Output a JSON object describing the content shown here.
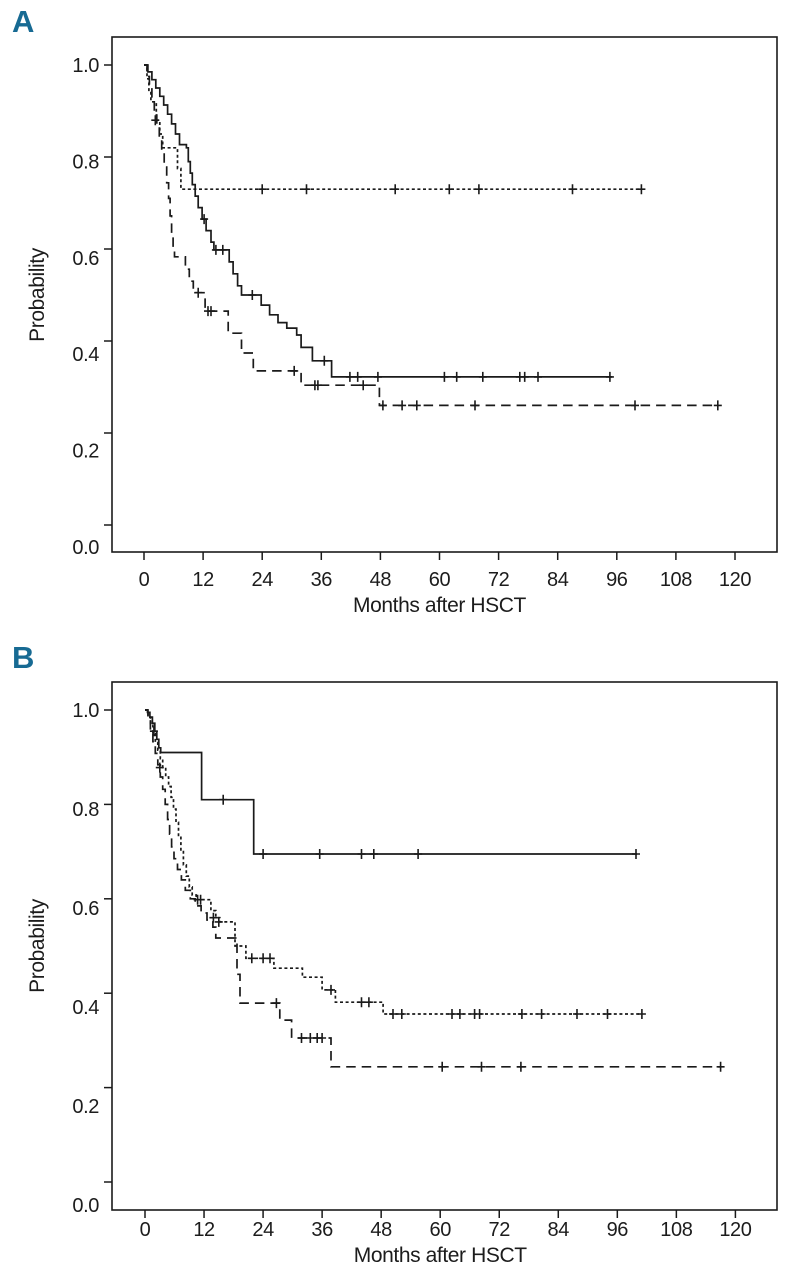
{
  "figure": {
    "accent_color": "#176a93",
    "axis_color": "#1a1a1a",
    "background": "#ffffff",
    "legend": "none (series distinguished by line style only)"
  },
  "chart_data": [
    {
      "type": "line",
      "subtype": "kaplan-meier-step",
      "title": "A",
      "xlabel": "Months after HSCT",
      "ylabel": "Probability",
      "xlim": [
        0,
        120
      ],
      "ylim": [
        0.0,
        1.0
      ],
      "x_ticks": [
        0,
        12,
        24,
        36,
        48,
        60,
        72,
        84,
        96,
        108,
        120
      ],
      "y_ticks": [
        0.0,
        0.2,
        0.4,
        0.6,
        0.8,
        1.0
      ],
      "y_tick_labels": [
        "0.0",
        "0.2",
        "0.4",
        "0.6",
        "0.8",
        "1.0"
      ],
      "grid": false,
      "series": [
        {
          "name": "short-dash-curve",
          "line_style": "short-dash",
          "color": "#1a1a1a",
          "steps": [
            [
              0,
              1.0
            ],
            [
              0.6,
              0.97
            ],
            [
              1.0,
              0.945
            ],
            [
              1.4,
              0.92
            ],
            [
              2.2,
              0.92
            ],
            [
              2.5,
              0.88
            ],
            [
              3.2,
              0.85
            ],
            [
              3.8,
              0.82
            ],
            [
              6.3,
              0.82
            ],
            [
              6.8,
              0.775
            ],
            [
              7.5,
              0.73
            ],
            [
              101,
              0.73
            ]
          ],
          "censor_marks": [
            [
              2.3,
              0.88
            ],
            [
              24,
              0.73
            ],
            [
              33,
              0.73
            ],
            [
              51,
              0.73
            ],
            [
              62,
              0.73
            ],
            [
              68,
              0.73
            ],
            [
              87,
              0.73
            ],
            [
              101,
              0.73
            ]
          ]
        },
        {
          "name": "solid-curve",
          "line_style": "solid",
          "color": "#1a1a1a",
          "steps": [
            [
              0,
              1.0
            ],
            [
              0.8,
              0.985
            ],
            [
              1.6,
              0.968
            ],
            [
              2.4,
              0.95
            ],
            [
              3.2,
              0.932
            ],
            [
              4.0,
              0.913
            ],
            [
              4.8,
              0.893
            ],
            [
              5.6,
              0.872
            ],
            [
              6.4,
              0.85
            ],
            [
              7.2,
              0.827
            ],
            [
              8.6,
              0.82
            ],
            [
              9.0,
              0.79
            ],
            [
              9.4,
              0.765
            ],
            [
              9.8,
              0.74
            ],
            [
              10.4,
              0.715
            ],
            [
              11.0,
              0.69
            ],
            [
              11.8,
              0.665
            ],
            [
              12.6,
              0.64
            ],
            [
              13.6,
              0.615
            ],
            [
              14.2,
              0.598
            ],
            [
              16.6,
              0.598
            ],
            [
              17.3,
              0.572
            ],
            [
              18.1,
              0.546
            ],
            [
              19.0,
              0.52
            ],
            [
              19.8,
              0.5
            ],
            [
              23.0,
              0.5
            ],
            [
              23.8,
              0.478
            ],
            [
              25.5,
              0.457
            ],
            [
              27.2,
              0.44
            ],
            [
              29.0,
              0.428
            ],
            [
              31.0,
              0.413
            ],
            [
              31.9,
              0.386
            ],
            [
              34.2,
              0.357
            ],
            [
              37.8,
              0.357
            ],
            [
              38.1,
              0.322
            ],
            [
              95,
              0.322
            ]
          ],
          "censor_marks": [
            [
              12.2,
              0.665
            ],
            [
              14.6,
              0.598
            ],
            [
              16.0,
              0.598
            ],
            [
              22.0,
              0.5
            ],
            [
              36.6,
              0.357
            ],
            [
              41.8,
              0.322
            ],
            [
              43.4,
              0.322
            ],
            [
              47.5,
              0.322
            ],
            [
              61.0,
              0.322
            ],
            [
              63.5,
              0.322
            ],
            [
              68.8,
              0.322
            ],
            [
              76.3,
              0.322
            ],
            [
              77.3,
              0.322
            ],
            [
              80.0,
              0.322
            ],
            [
              94.6,
              0.322
            ]
          ]
        },
        {
          "name": "long-dash-curve",
          "line_style": "long-dash",
          "color": "#1a1a1a",
          "steps": [
            [
              0,
              1.0
            ],
            [
              0.6,
              0.975
            ],
            [
              1.1,
              0.95
            ],
            [
              1.6,
              0.923
            ],
            [
              2.1,
              0.896
            ],
            [
              2.6,
              0.868
            ],
            [
              3.1,
              0.84
            ],
            [
              3.6,
              0.81
            ],
            [
              4.1,
              0.778
            ],
            [
              4.6,
              0.744
            ],
            [
              5.0,
              0.71
            ],
            [
              5.3,
              0.672
            ],
            [
              5.6,
              0.634
            ],
            [
              5.9,
              0.6
            ],
            [
              6.2,
              0.583
            ],
            [
              7.7,
              0.583
            ],
            [
              8.4,
              0.556
            ],
            [
              9.2,
              0.53
            ],
            [
              10.0,
              0.505
            ],
            [
              12.1,
              0.505
            ],
            [
              12.4,
              0.465
            ],
            [
              16.8,
              0.465
            ],
            [
              17.1,
              0.417
            ],
            [
              19.5,
              0.417
            ],
            [
              19.8,
              0.374
            ],
            [
              21.9,
              0.374
            ],
            [
              22.2,
              0.335
            ],
            [
              31.6,
              0.335
            ],
            [
              31.9,
              0.304
            ],
            [
              47.4,
              0.304
            ],
            [
              47.8,
              0.26
            ],
            [
              116.5,
              0.26
            ]
          ],
          "censor_marks": [
            [
              11.0,
              0.505
            ],
            [
              13.0,
              0.465
            ],
            [
              13.6,
              0.465
            ],
            [
              30.5,
              0.335
            ],
            [
              34.7,
              0.304
            ],
            [
              35.3,
              0.304
            ],
            [
              44.5,
              0.304
            ],
            [
              48.5,
              0.26
            ],
            [
              52.4,
              0.26
            ],
            [
              55.4,
              0.26
            ],
            [
              67.2,
              0.26
            ],
            [
              99.7,
              0.26
            ],
            [
              116.5,
              0.26
            ]
          ]
        }
      ]
    },
    {
      "type": "line",
      "subtype": "kaplan-meier-step",
      "title": "B",
      "xlabel": "Months after HSCT",
      "ylabel": "Probability",
      "xlim": [
        0,
        120
      ],
      "ylim": [
        0.0,
        1.0
      ],
      "x_ticks": [
        0,
        12,
        24,
        36,
        48,
        60,
        72,
        84,
        96,
        108,
        120
      ],
      "y_ticks": [
        0.0,
        0.2,
        0.4,
        0.6,
        0.8,
        1.0
      ],
      "y_tick_labels": [
        "0.0",
        "0.2",
        "0.4",
        "0.6",
        "0.8",
        "1.0"
      ],
      "grid": false,
      "series": [
        {
          "name": "solid-curve",
          "line_style": "solid",
          "color": "#1a1a1a",
          "steps": [
            [
              0,
              1.0
            ],
            [
              0.5,
              0.995
            ],
            [
              1.0,
              0.985
            ],
            [
              1.5,
              0.972
            ],
            [
              2.0,
              0.955
            ],
            [
              2.4,
              0.938
            ],
            [
              2.8,
              0.92
            ],
            [
              3.2,
              0.91
            ],
            [
              11.2,
              0.91
            ],
            [
              11.5,
              0.81
            ],
            [
              21.8,
              0.81
            ],
            [
              22.1,
              0.695
            ],
            [
              100,
              0.695
            ]
          ],
          "censor_marks": [
            [
              1.8,
              0.955
            ],
            [
              15.9,
              0.81
            ],
            [
              24.0,
              0.695
            ],
            [
              35.5,
              0.695
            ],
            [
              44.0,
              0.695
            ],
            [
              46.5,
              0.695
            ],
            [
              55.5,
              0.695
            ],
            [
              99.8,
              0.695
            ]
          ]
        },
        {
          "name": "short-dash-curve",
          "line_style": "short-dash",
          "color": "#1a1a1a",
          "steps": [
            [
              0,
              1.0
            ],
            [
              0.6,
              0.985
            ],
            [
              1.1,
              0.968
            ],
            [
              1.6,
              0.95
            ],
            [
              2.1,
              0.932
            ],
            [
              2.6,
              0.915
            ],
            [
              3.1,
              0.897
            ],
            [
              3.6,
              0.878
            ],
            [
              4.2,
              0.858
            ],
            [
              4.8,
              0.838
            ],
            [
              5.3,
              0.815
            ],
            [
              5.8,
              0.79
            ],
            [
              6.3,
              0.762
            ],
            [
              6.8,
              0.732
            ],
            [
              7.3,
              0.7
            ],
            [
              7.8,
              0.672
            ],
            [
              8.4,
              0.648
            ],
            [
              9.0,
              0.625
            ],
            [
              9.6,
              0.608
            ],
            [
              10.4,
              0.598
            ],
            [
              13.0,
              0.598
            ],
            [
              13.4,
              0.575
            ],
            [
              14.4,
              0.56
            ],
            [
              15.2,
              0.551
            ],
            [
              17.3,
              0.551
            ],
            [
              18.3,
              0.5
            ],
            [
              20.5,
              0.474
            ],
            [
              25.8,
              0.474
            ],
            [
              26.2,
              0.453
            ],
            [
              31.6,
              0.453
            ],
            [
              32.0,
              0.434
            ],
            [
              35.6,
              0.434
            ],
            [
              36.0,
              0.407
            ],
            [
              38.3,
              0.407
            ],
            [
              38.7,
              0.381
            ],
            [
              48.0,
              0.381
            ],
            [
              48.4,
              0.356
            ],
            [
              101,
              0.356
            ]
          ],
          "censor_marks": [
            [
              3.0,
              0.878
            ],
            [
              10.7,
              0.598
            ],
            [
              11.3,
              0.598
            ],
            [
              13.9,
              0.56
            ],
            [
              15.0,
              0.551
            ],
            [
              21.7,
              0.474
            ],
            [
              24.0,
              0.474
            ],
            [
              25.4,
              0.474
            ],
            [
              37.8,
              0.407
            ],
            [
              44.0,
              0.381
            ],
            [
              45.5,
              0.381
            ],
            [
              50.4,
              0.356
            ],
            [
              52.2,
              0.356
            ],
            [
              62.4,
              0.356
            ],
            [
              64.0,
              0.356
            ],
            [
              67.0,
              0.356
            ],
            [
              68.0,
              0.356
            ],
            [
              76.6,
              0.356
            ],
            [
              80.6,
              0.356
            ],
            [
              87.8,
              0.356
            ],
            [
              94.0,
              0.356
            ],
            [
              101,
              0.356
            ]
          ]
        },
        {
          "name": "long-dash-curve",
          "line_style": "long-dash",
          "color": "#1a1a1a",
          "steps": [
            [
              0,
              1.0
            ],
            [
              0.6,
              0.98
            ],
            [
              1.1,
              0.957
            ],
            [
              1.6,
              0.933
            ],
            [
              2.1,
              0.908
            ],
            [
              2.6,
              0.884
            ],
            [
              3.1,
              0.858
            ],
            [
              3.6,
              0.832
            ],
            [
              4.1,
              0.8
            ],
            [
              4.6,
              0.768
            ],
            [
              5.0,
              0.737
            ],
            [
              5.4,
              0.71
            ],
            [
              5.9,
              0.685
            ],
            [
              6.6,
              0.662
            ],
            [
              7.4,
              0.64
            ],
            [
              8.2,
              0.618
            ],
            [
              9.2,
              0.6
            ],
            [
              10.2,
              0.585
            ],
            [
              11.4,
              0.57
            ],
            [
              12.6,
              0.555
            ],
            [
              13.8,
              0.54
            ],
            [
              14.4,
              0.517
            ],
            [
              18.3,
              0.517
            ],
            [
              18.7,
              0.44
            ],
            [
              19.3,
              0.379
            ],
            [
              27.0,
              0.379
            ],
            [
              27.4,
              0.343
            ],
            [
              29.4,
              0.343
            ],
            [
              29.8,
              0.305
            ],
            [
              37.4,
              0.305
            ],
            [
              37.8,
              0.244
            ],
            [
              117,
              0.244
            ]
          ],
          "censor_marks": [
            [
              26.7,
              0.379
            ],
            [
              31.8,
              0.305
            ],
            [
              33.6,
              0.305
            ],
            [
              35.0,
              0.305
            ],
            [
              36.0,
              0.305
            ],
            [
              60.4,
              0.244
            ],
            [
              68.4,
              0.244
            ],
            [
              76.4,
              0.244
            ],
            [
              117,
              0.244
            ]
          ]
        }
      ]
    }
  ]
}
